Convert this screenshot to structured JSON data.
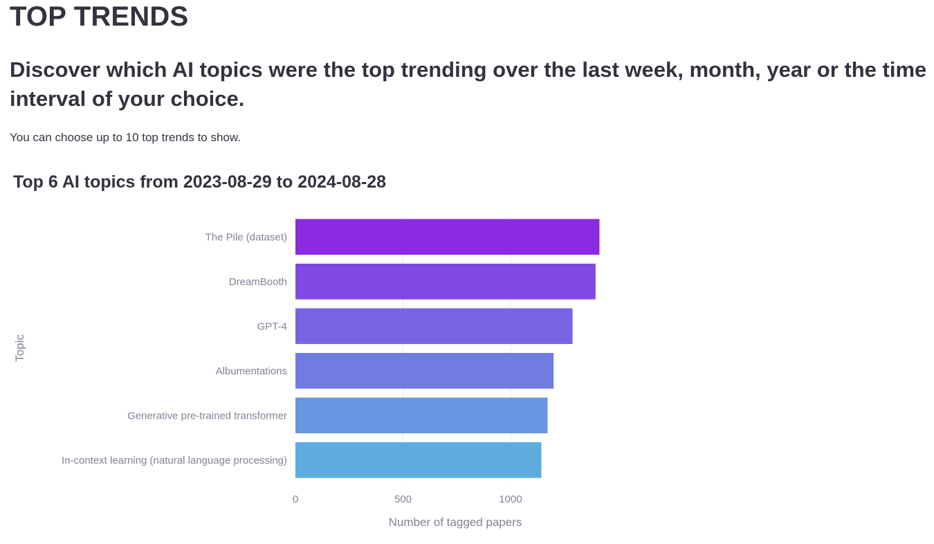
{
  "page": {
    "title": "TOP TRENDS",
    "subtitle": "Discover which AI topics were the top trending over the last week, month, year or the time interval of your choice.",
    "intro": "You can choose up to 10 top trends to show."
  },
  "chart_data": {
    "type": "bar",
    "orientation": "horizontal",
    "title": "Top 6 AI topics from 2023-08-29 to 2024-08-28",
    "xlabel": "Number of tagged papers",
    "ylabel": "Topic",
    "categories": [
      "The Pile (dataset)",
      "DreamBooth",
      "GPT-4",
      "Albumentations",
      "Generative pre-trained transformer",
      "In-context learning (natural language processing)"
    ],
    "values": [
      1413,
      1395,
      1288,
      1200,
      1172,
      1143
    ],
    "colors": [
      "#8a2be2",
      "#8148e3",
      "#7a63e3",
      "#717ce2",
      "#6a95e2",
      "#5eabe0"
    ],
    "xticks": [
      0,
      500,
      1000
    ],
    "xlim": [
      0,
      1500
    ],
    "grid": true
  }
}
